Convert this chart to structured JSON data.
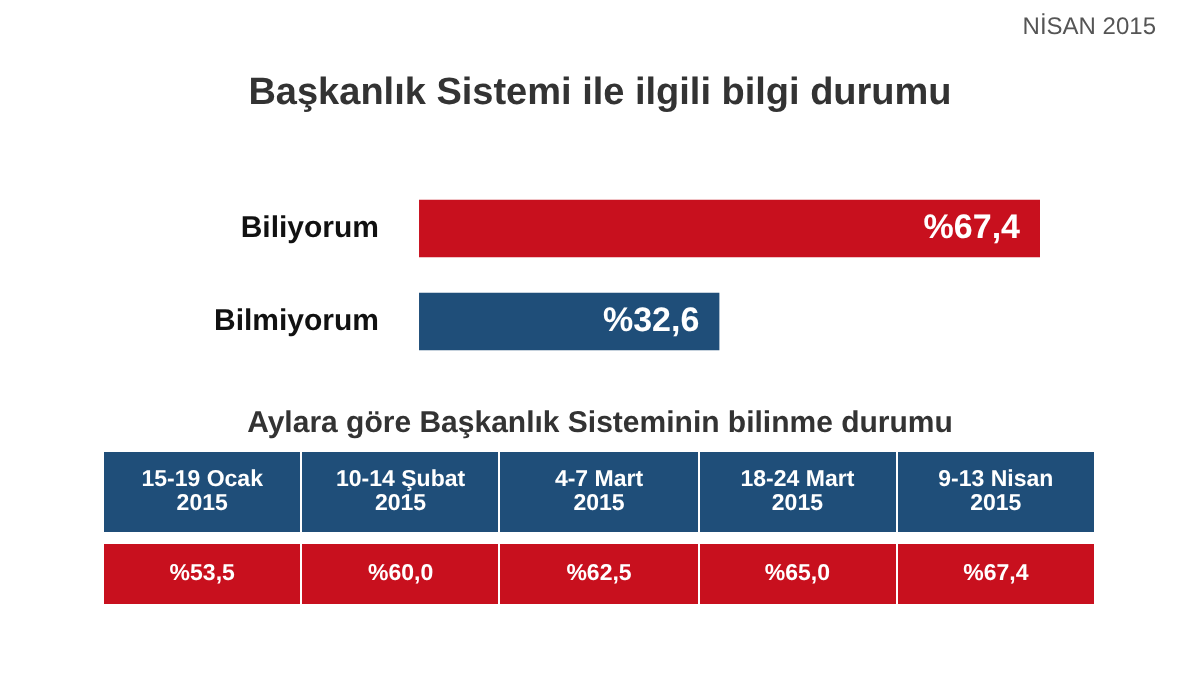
{
  "chart_data": [
    {
      "type": "bar",
      "orientation": "horizontal",
      "title": "Başkanlık Sistemi ile ilgili bilgi durumu",
      "subtitle": "NİSAN 2015",
      "categories": [
        "Biliyorum",
        "Bilmiyorum"
      ],
      "values": [
        67.4,
        32.6
      ],
      "colors": [
        "#c8101e",
        "#1f4e79"
      ],
      "value_labels": [
        "%67,4",
        "%32,6"
      ],
      "tick_labels": "y"
    },
    {
      "type": "other",
      "title": "Aylara göre Başkanlık Sisteminin bilinme durumu",
      "categories": [
        "15-19 Ocak 2015",
        "10-14 Şubat 2015",
        "4-7 Mart 2015",
        "18-24 Mart 2015",
        "9-13 Nisan 2015"
      ],
      "values": [
        53.5,
        60.0,
        62.5,
        65.0,
        67.4
      ],
      "value_labels": [
        "%53,5",
        "%60,0",
        "%62,5",
        "%65,0",
        "%67,4"
      ]
    }
  ]
}
